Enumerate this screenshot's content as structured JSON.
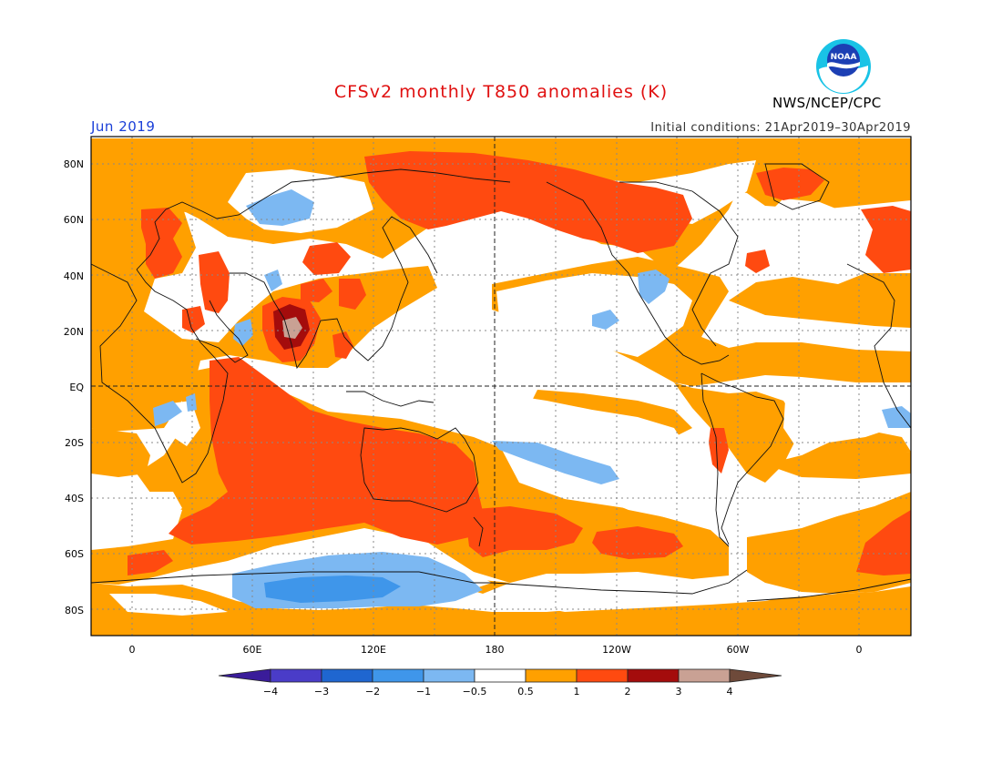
{
  "title": "CFSv2 monthly T850 anomalies (K)",
  "month": "Jun 2019",
  "initial_conditions": "Initial conditions: 21Apr2019–30Apr2019",
  "agency": "NWS/NCEP/CPC",
  "logo_text": "NOAA",
  "colors": {
    "title": "#e01010",
    "month": "#1a3fd8",
    "neg4": "#3a1c9a",
    "neg3": "#4a3cc8",
    "neg2": "#1f66d0",
    "neg1": "#3f96ea",
    "neg05": "#7cb8f2",
    "neutral": "#ffffff",
    "pos05": "#ffa000",
    "pos1": "#ff4a10",
    "pos2": "#a40c0c",
    "pos3": "#c9a194",
    "pos4": "#6e4a3a"
  },
  "lat_labels": [
    "80N",
    "60N",
    "40N",
    "20N",
    "EQ",
    "20S",
    "40S",
    "60S",
    "80S"
  ],
  "lon_labels": [
    "0",
    "60E",
    "120E",
    "180",
    "120W",
    "60W",
    "0"
  ],
  "colorbar_labels": [
    "−4",
    "−3",
    "−2",
    "−1",
    "−0.5",
    "0.5",
    "1",
    "2",
    "3",
    "4"
  ],
  "colorbar_levels": [
    -4,
    -3,
    -2,
    -1,
    -0.5,
    0.5,
    1,
    2,
    3,
    4
  ]
}
